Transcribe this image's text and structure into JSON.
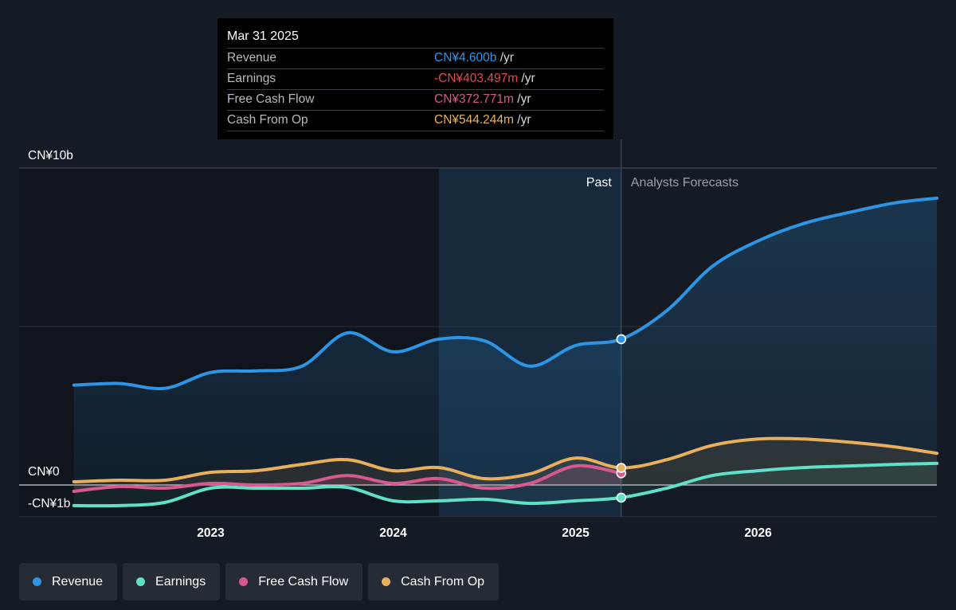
{
  "chart_data": {
    "type": "area",
    "y_unit_labels": {
      "top": "CN¥10b",
      "zero": "CN¥0",
      "neg": "-CN¥1b"
    },
    "ylim": [
      -1,
      10
    ],
    "x_ticks": [
      {
        "label": "2023",
        "x": 2023.0
      },
      {
        "label": "2024",
        "x": 2024.0
      },
      {
        "label": "2025",
        "x": 2025.0
      },
      {
        "label": "2026",
        "x": 2026.0
      }
    ],
    "xlim": [
      2021.95,
      2026.98
    ],
    "past_label": "Past",
    "forecast_label": "Analysts Forecasts",
    "highlight_range": [
      2024.25,
      2025.25
    ],
    "present_x": 2025.25,
    "series": [
      {
        "name": "Revenue",
        "color": "#2d95e3",
        "points": [
          [
            2022.25,
            3.15
          ],
          [
            2022.5,
            3.2
          ],
          [
            2022.75,
            3.05
          ],
          [
            2023.0,
            3.55
          ],
          [
            2023.25,
            3.6
          ],
          [
            2023.5,
            3.75
          ],
          [
            2023.75,
            4.8
          ],
          [
            2024.0,
            4.2
          ],
          [
            2024.25,
            4.6
          ],
          [
            2024.5,
            4.55
          ],
          [
            2024.75,
            3.75
          ],
          [
            2025.0,
            4.4
          ],
          [
            2025.25,
            4.6
          ]
        ],
        "forecast": [
          [
            2025.25,
            4.6
          ],
          [
            2025.5,
            5.5
          ],
          [
            2025.75,
            6.9
          ],
          [
            2026.0,
            7.7
          ],
          [
            2026.25,
            8.25
          ],
          [
            2026.5,
            8.6
          ],
          [
            2026.75,
            8.9
          ],
          [
            2026.98,
            9.05
          ]
        ]
      },
      {
        "name": "Earnings",
        "color": "#5fe1c8",
        "points": [
          [
            2022.25,
            -0.65
          ],
          [
            2022.5,
            -0.65
          ],
          [
            2022.75,
            -0.55
          ],
          [
            2023.0,
            -0.1
          ],
          [
            2023.25,
            -0.1
          ],
          [
            2023.5,
            -0.1
          ],
          [
            2023.75,
            -0.08
          ],
          [
            2024.0,
            -0.5
          ],
          [
            2024.25,
            -0.5
          ],
          [
            2024.5,
            -0.45
          ],
          [
            2024.75,
            -0.58
          ],
          [
            2025.0,
            -0.5
          ],
          [
            2025.25,
            -0.4
          ]
        ],
        "forecast": [
          [
            2025.25,
            -0.4
          ],
          [
            2025.5,
            -0.1
          ],
          [
            2025.75,
            0.3
          ],
          [
            2026.0,
            0.45
          ],
          [
            2026.25,
            0.55
          ],
          [
            2026.5,
            0.6
          ],
          [
            2026.75,
            0.65
          ],
          [
            2026.98,
            0.68
          ]
        ]
      },
      {
        "name": "Free Cash Flow",
        "color": "#d8598f",
        "points": [
          [
            2022.25,
            -0.2
          ],
          [
            2022.5,
            -0.05
          ],
          [
            2022.75,
            -0.1
          ],
          [
            2023.0,
            0.05
          ],
          [
            2023.25,
            0.0
          ],
          [
            2023.5,
            0.05
          ],
          [
            2023.75,
            0.3
          ],
          [
            2024.0,
            0.05
          ],
          [
            2024.25,
            0.2
          ],
          [
            2024.5,
            -0.1
          ],
          [
            2024.75,
            0.05
          ],
          [
            2025.0,
            0.6
          ],
          [
            2025.25,
            0.37
          ]
        ],
        "forecast": []
      },
      {
        "name": "Cash From Op",
        "color": "#e8b05c",
        "points": [
          [
            2022.25,
            0.1
          ],
          [
            2022.5,
            0.15
          ],
          [
            2022.75,
            0.15
          ],
          [
            2023.0,
            0.4
          ],
          [
            2023.25,
            0.45
          ],
          [
            2023.5,
            0.65
          ],
          [
            2023.75,
            0.8
          ],
          [
            2024.0,
            0.45
          ],
          [
            2024.25,
            0.55
          ],
          [
            2024.5,
            0.2
          ],
          [
            2024.75,
            0.35
          ],
          [
            2025.0,
            0.85
          ],
          [
            2025.25,
            0.54
          ]
        ],
        "forecast": [
          [
            2025.25,
            0.54
          ],
          [
            2025.5,
            0.8
          ],
          [
            2025.75,
            1.25
          ],
          [
            2026.0,
            1.45
          ],
          [
            2026.25,
            1.45
          ],
          [
            2026.5,
            1.35
          ],
          [
            2026.75,
            1.2
          ],
          [
            2026.98,
            1.0
          ]
        ]
      }
    ]
  },
  "tooltip": {
    "date": "Mar 31 2025",
    "rows": [
      {
        "label": "Revenue",
        "value": "CN¥4.600b",
        "unit": " /yr",
        "color": "#2d95e3"
      },
      {
        "label": "Earnings",
        "value": "-CN¥403.497m",
        "unit": " /yr",
        "color": "#e54a4a"
      },
      {
        "label": "Free Cash Flow",
        "value": "CN¥372.771m",
        "unit": " /yr",
        "color": "#d8598f"
      },
      {
        "label": "Cash From Op",
        "value": "CN¥544.244m",
        "unit": " /yr",
        "color": "#e8b05c"
      }
    ]
  },
  "legend": [
    {
      "label": "Revenue",
      "color": "#2d95e3"
    },
    {
      "label": "Earnings",
      "color": "#5fe1c8"
    },
    {
      "label": "Free Cash Flow",
      "color": "#d8598f"
    },
    {
      "label": "Cash From Op",
      "color": "#e8b05c"
    }
  ]
}
